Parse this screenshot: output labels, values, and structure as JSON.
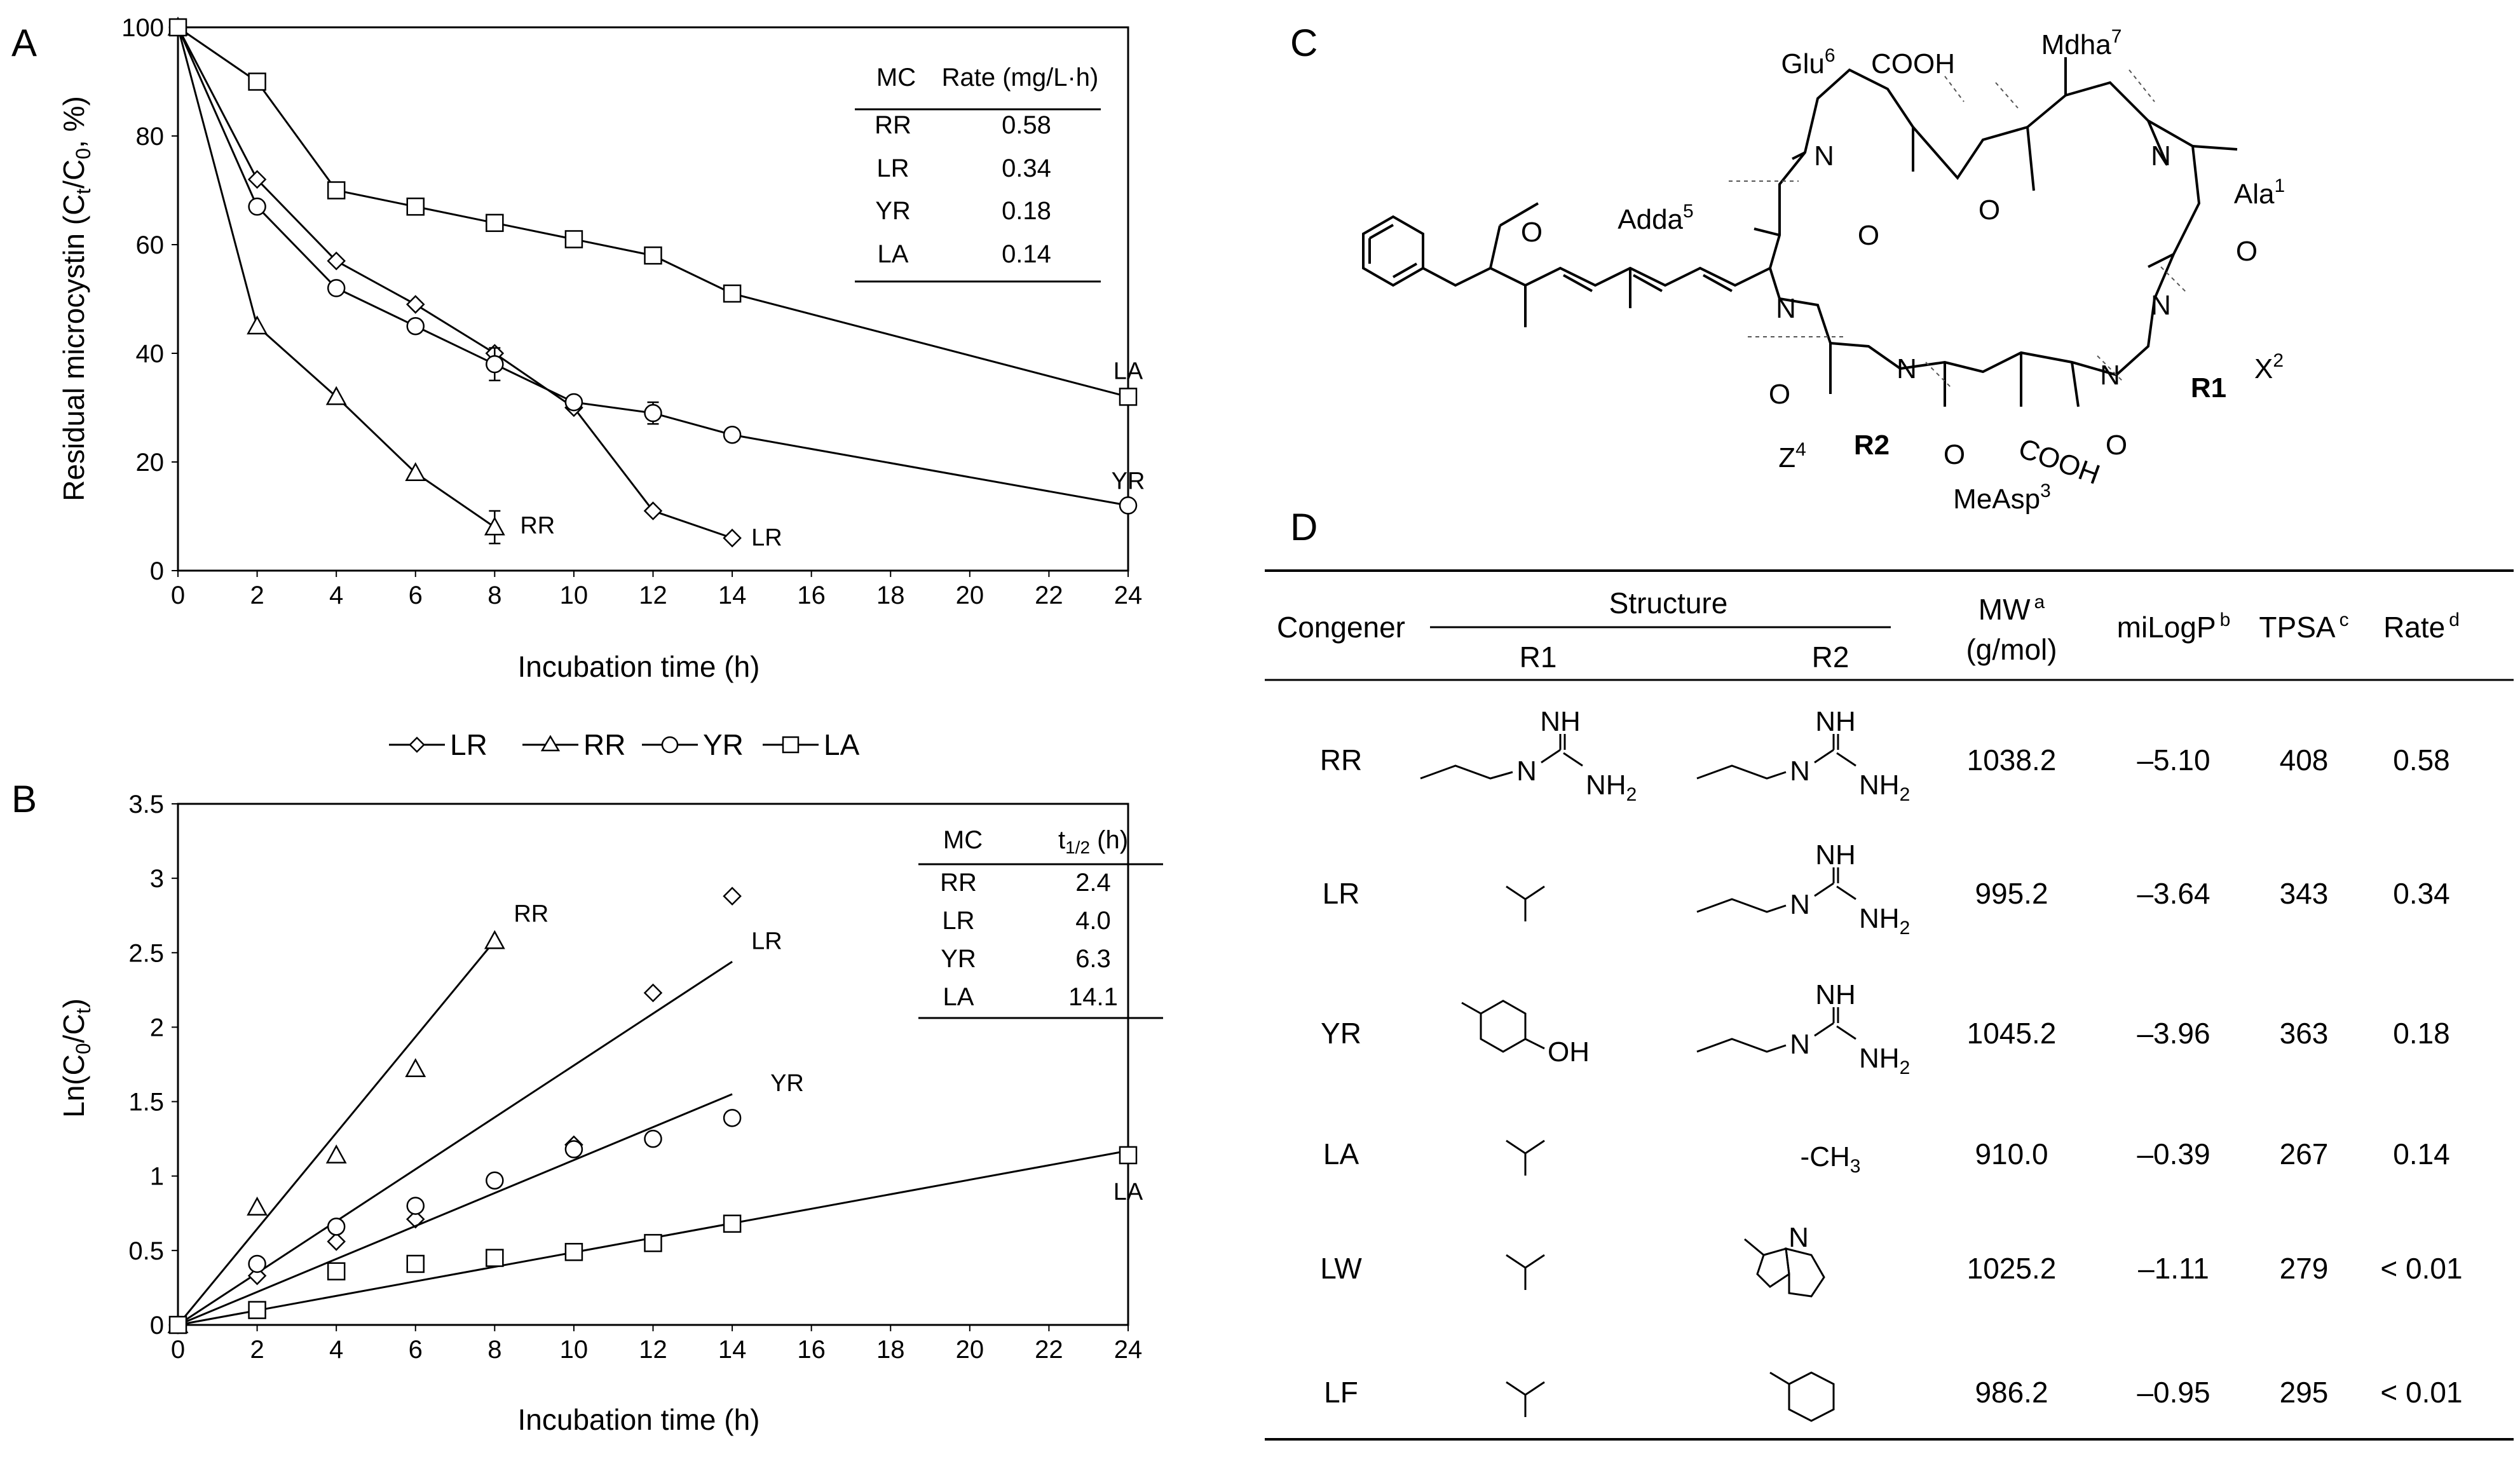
{
  "panels": {
    "A": "A",
    "B": "B",
    "C": "C",
    "D": "D"
  },
  "chart_data": [
    {
      "id": "A",
      "type": "line",
      "xlabel": "Incubation time (h)",
      "ylabel": "Residual microcystin (C",
      "ylabel_sub": "t",
      "ylabel_mid": "/C",
      "ylabel_sub2": "0",
      "ylabel_end": ", %)",
      "xlim": [
        0,
        24
      ],
      "ylim": [
        0,
        100
      ],
      "xticks": [
        "0",
        "2",
        "4",
        "6",
        "8",
        "10",
        "12",
        "14",
        "16",
        "18",
        "20",
        "22",
        "24"
      ],
      "yticks": [
        "0",
        "20",
        "40",
        "60",
        "80",
        "100"
      ],
      "series": [
        {
          "name": "LR",
          "marker": "diamond",
          "x": [
            0,
            2,
            4,
            6,
            8,
            10,
            12,
            14
          ],
          "values": [
            100,
            72,
            57,
            49,
            40,
            30,
            11,
            6
          ],
          "err": [
            0,
            0,
            0,
            0,
            0,
            0,
            0,
            0
          ],
          "label": "LR"
        },
        {
          "name": "RR",
          "marker": "triangle",
          "x": [
            0,
            2,
            4,
            6,
            8
          ],
          "values": [
            100,
            45,
            32,
            18,
            8
          ],
          "err": [
            0,
            0,
            0,
            0,
            3
          ],
          "label": "RR"
        },
        {
          "name": "YR",
          "marker": "circle",
          "x": [
            0,
            2,
            4,
            6,
            8,
            10,
            12,
            14,
            24
          ],
          "values": [
            100,
            67,
            52,
            45,
            38,
            31,
            29,
            25,
            12
          ],
          "err": [
            0,
            0,
            0,
            0,
            3,
            0,
            2,
            0,
            0
          ],
          "label": "YR"
        },
        {
          "name": "LA",
          "marker": "square",
          "x": [
            0,
            2,
            4,
            6,
            8,
            10,
            12,
            14,
            24
          ],
          "values": [
            100,
            90,
            70,
            67,
            64,
            61,
            58,
            51,
            32
          ],
          "err": [
            0,
            0,
            0,
            1,
            1,
            1,
            1,
            0,
            0
          ],
          "label": "LA"
        }
      ],
      "inset_table": {
        "headers": [
          "MC",
          "Rate (mg/L·h)"
        ],
        "rows": [
          [
            "RR",
            "0.58"
          ],
          [
            "LR",
            "0.34"
          ],
          [
            "YR",
            "0.18"
          ],
          [
            "LA",
            "0.14"
          ]
        ]
      },
      "legend": {
        "position": "bottom-center",
        "entries": [
          "LR",
          "RR",
          "YR",
          "LA"
        ]
      }
    },
    {
      "id": "B",
      "type": "scatter",
      "xlabel": "Incubation time (h)",
      "ylabel": "Ln(C",
      "ylabel_sub": "0",
      "ylabel_mid": "/C",
      "ylabel_sub2": "t",
      "ylabel_end": ")",
      "xlim": [
        0,
        24
      ],
      "ylim": [
        0,
        3.5
      ],
      "xticks": [
        "0",
        "2",
        "4",
        "6",
        "8",
        "10",
        "12",
        "14",
        "16",
        "18",
        "20",
        "22",
        "24"
      ],
      "yticks": [
        "0",
        "0.5",
        "1",
        "1.5",
        "2",
        "2.5",
        "3",
        "3.5"
      ],
      "series": [
        {
          "name": "RR",
          "marker": "triangle",
          "x": [
            0,
            2,
            4,
            6,
            8
          ],
          "values": [
            0,
            0.79,
            1.14,
            1.72,
            2.58
          ],
          "fit": {
            "x": [
              0,
              8
            ],
            "y": [
              0,
              2.58
            ]
          },
          "label": "RR"
        },
        {
          "name": "LR",
          "marker": "diamond",
          "x": [
            0,
            2,
            4,
            6,
            10,
            12,
            14
          ],
          "values": [
            0,
            0.33,
            0.56,
            0.71,
            1.21,
            2.23,
            2.88
          ],
          "fit": {
            "x": [
              0,
              14
            ],
            "y": [
              0,
              2.44
            ]
          },
          "label": "LR"
        },
        {
          "name": "YR",
          "marker": "circle",
          "x": [
            0,
            2,
            4,
            6,
            8,
            10,
            12,
            14
          ],
          "values": [
            0,
            0.41,
            0.66,
            0.8,
            0.97,
            1.18,
            1.25,
            1.39
          ],
          "fit": {
            "x": [
              0,
              14
            ],
            "y": [
              0,
              1.55
            ]
          },
          "label": "YR"
        },
        {
          "name": "LA",
          "marker": "square",
          "x": [
            0,
            2,
            4,
            6,
            8,
            10,
            12,
            14,
            24
          ],
          "values": [
            0,
            0.1,
            0.36,
            0.41,
            0.45,
            0.49,
            0.55,
            0.68,
            1.14
          ],
          "fit": {
            "x": [
              0,
              24
            ],
            "y": [
              0,
              1.17
            ]
          },
          "label": "LA"
        }
      ],
      "inset_table": {
        "headers": [
          "MC",
          "t",
          "1/2",
          " (h)"
        ],
        "rows": [
          [
            "RR",
            "2.4"
          ],
          [
            "LR",
            "4.0"
          ],
          [
            "YR",
            "6.3"
          ],
          [
            "LA",
            "14.1"
          ]
        ]
      }
    }
  ],
  "structure_labels": {
    "glu": "Glu",
    "glu_sup": "6",
    "cooh_top": "COOH",
    "mdha": "Mdha",
    "mdha_sup": "7",
    "adda": "Adda",
    "adda_sup": "5",
    "ala": "Ala",
    "ala_sup": "1",
    "x": "X",
    "x_sup": "2",
    "z": "Z",
    "z_sup": "4",
    "r1": "R1",
    "r2": "R2",
    "cooh_bottom": "COOH",
    "measp": "MeAsp",
    "measp_sup": "3",
    "n": "N",
    "o": "O"
  },
  "table_d": {
    "headers": {
      "congener": "Congener",
      "structure": "Structure",
      "r1": "R1",
      "r2": "R2",
      "mw": "MW",
      "mw_note": "a",
      "mw_unit": "(g/mol)",
      "milogp": "miLogP",
      "milogp_note": "b",
      "tpsa": "TPSA",
      "tpsa_note": "c",
      "rate": "Rate",
      "rate_note": "d"
    },
    "rows": [
      {
        "congener": "RR",
        "mw": "1038.2",
        "milogp": "–5.10",
        "tpsa": "408",
        "rate": "0.58"
      },
      {
        "congener": "LR",
        "mw": "995.2",
        "milogp": "–3.64",
        "tpsa": "343",
        "rate": "0.34"
      },
      {
        "congener": "YR",
        "mw": "1045.2",
        "milogp": "–3.96",
        "tpsa": "363",
        "rate": "0.18"
      },
      {
        "congener": "LA",
        "mw": "910.0",
        "milogp": "–0.39",
        "tpsa": "267",
        "rate": "0.14"
      },
      {
        "congener": "LW",
        "mw": "1025.2",
        "milogp": "–1.11",
        "tpsa": "279",
        "rate": "< 0.01"
      },
      {
        "congener": "LF",
        "mw": "986.2",
        "milogp": "–0.95",
        "tpsa": "295",
        "rate": "< 0.01"
      }
    ],
    "chem_text": {
      "nh": "NH",
      "n": "N",
      "nh2": "NH",
      "nh2_sub": "2",
      "oh": "OH",
      "ch3": "-CH",
      "ch3_sub": "3"
    }
  }
}
